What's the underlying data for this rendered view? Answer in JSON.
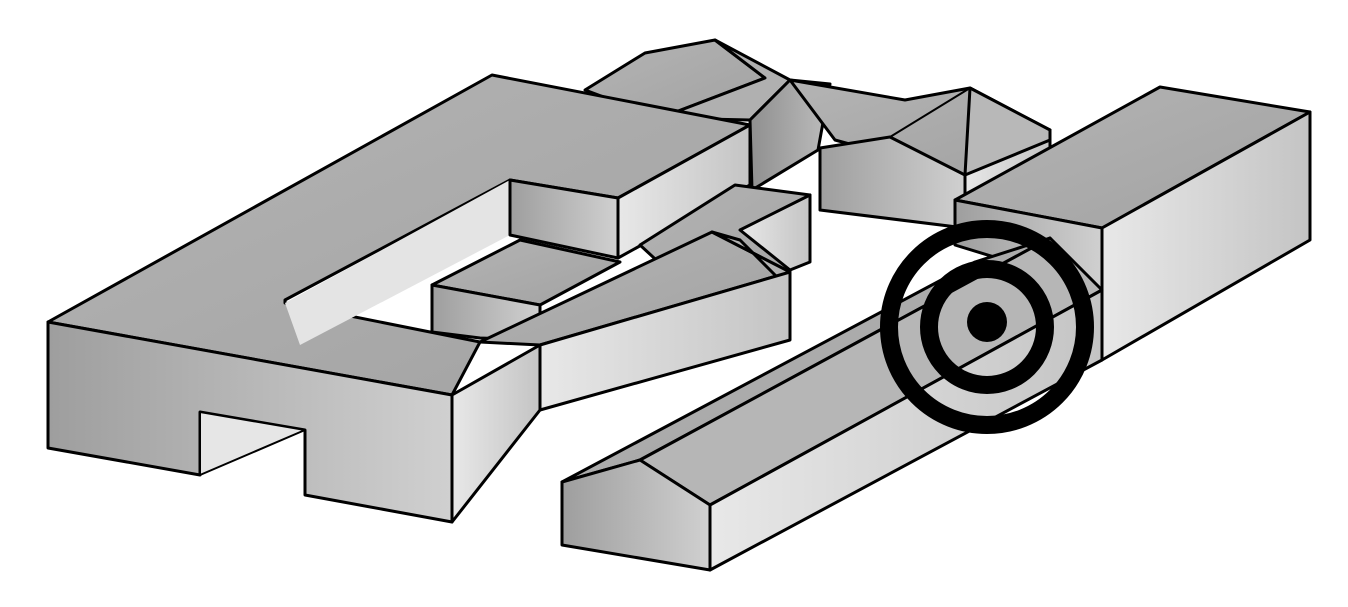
{
  "scene": {
    "kind": "isometric-building-massing",
    "fill_colors": {
      "roof": "#a9a9a9",
      "wall_light": "#e6e6e6",
      "wall_mid": "#c4c4c4",
      "wall_dark": "#9a9a9a",
      "outline": "#000000"
    },
    "buildings": [
      "courtyard-block",
      "courtyard-inner-block",
      "courtyard-small-block",
      "gabled-annex",
      "rear-gabled-wing",
      "rear-hipped-wing",
      "tall-right-block",
      "front-gabled-bar"
    ],
    "marker": {
      "type": "target",
      "color": "#000000",
      "rings": 2,
      "center_dot": true
    }
  }
}
